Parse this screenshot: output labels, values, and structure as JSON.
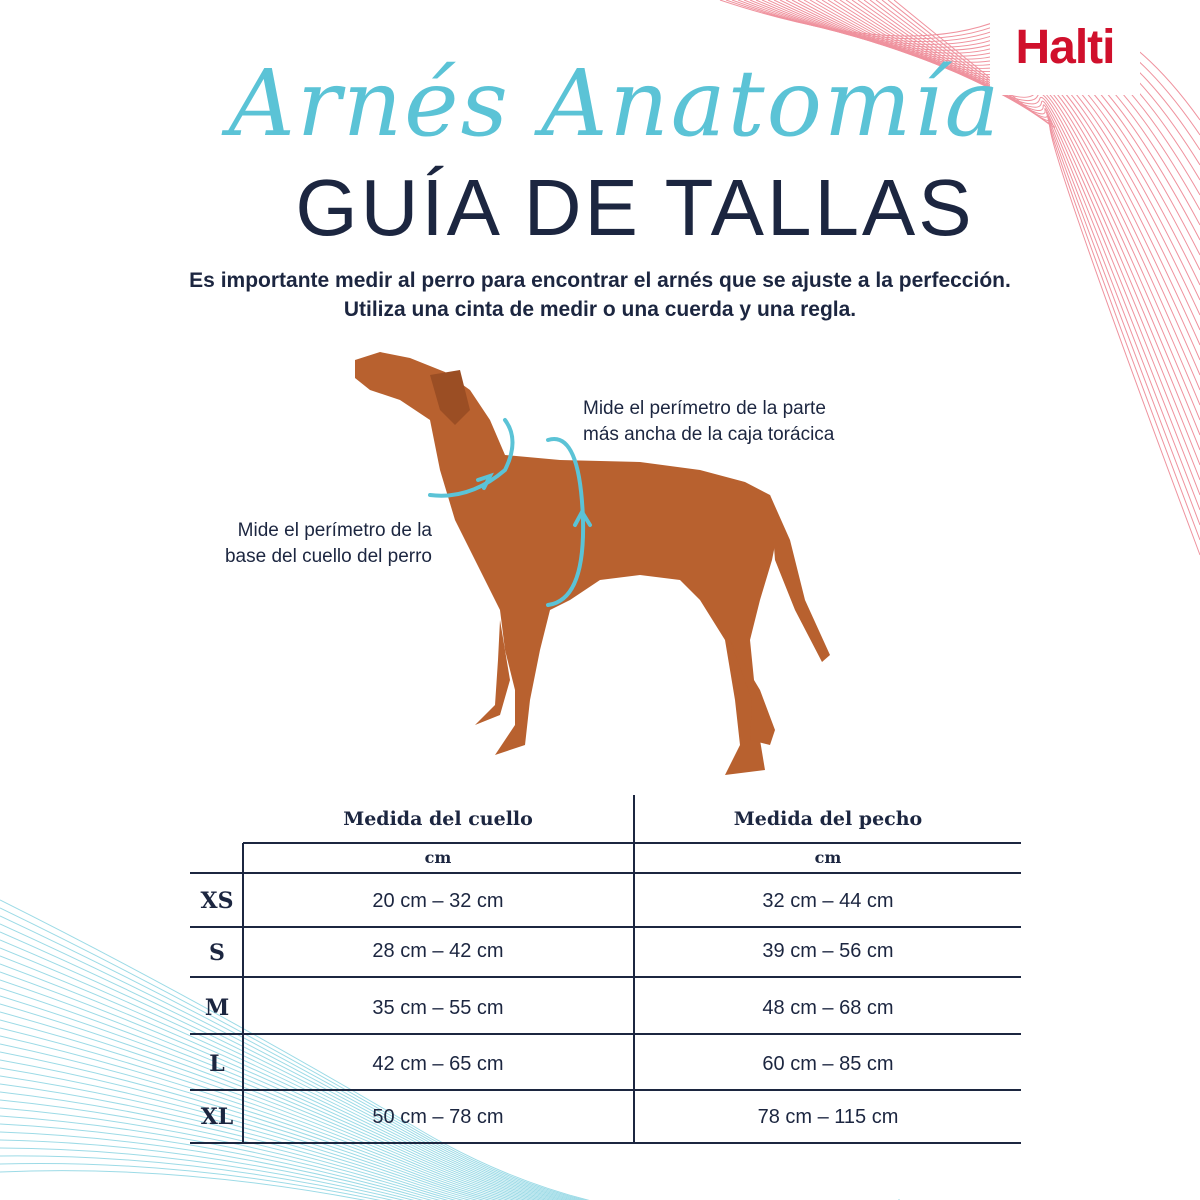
{
  "brand": {
    "logo": "Halti",
    "accent": "#d0102c"
  },
  "header": {
    "script_title": "Arnés Anatomía",
    "title": "GUÍA DE TALLAS"
  },
  "intro": {
    "line1": "Es importante medir al perro para encontrar el arnés que se ajuste a la perfección.",
    "line2": "Utiliza una cinta de medir o una cuerda y una regla."
  },
  "annotations": {
    "chest": {
      "line1": "Mide el perímetro de la parte",
      "line2": "más ancha de la caja torácica"
    },
    "neck": {
      "line1": "Mide el perímetro de la",
      "line2": "base del cuello del perro"
    }
  },
  "colors": {
    "navy": "#1c2640",
    "teal": "#5bc3d6",
    "dog": "#b8612f"
  },
  "table": {
    "columns": [
      {
        "label": "Medida del cuello",
        "unit": "cm"
      },
      {
        "label": "Medida del pecho",
        "unit": "cm"
      }
    ],
    "rows": [
      {
        "size": "XS",
        "neck": "20 cm – 32 cm",
        "chest": "32 cm – 44 cm"
      },
      {
        "size": "S",
        "neck": "28 cm – 42 cm",
        "chest": "39 cm – 56 cm"
      },
      {
        "size": "M",
        "neck": "35 cm – 55 cm",
        "chest": "48 cm – 68 cm"
      },
      {
        "size": "L",
        "neck": "42 cm – 65 cm",
        "chest": "60 cm – 85 cm"
      },
      {
        "size": "XL",
        "neck": "50 cm – 78 cm",
        "chest": "78 cm – 115 cm"
      }
    ]
  }
}
